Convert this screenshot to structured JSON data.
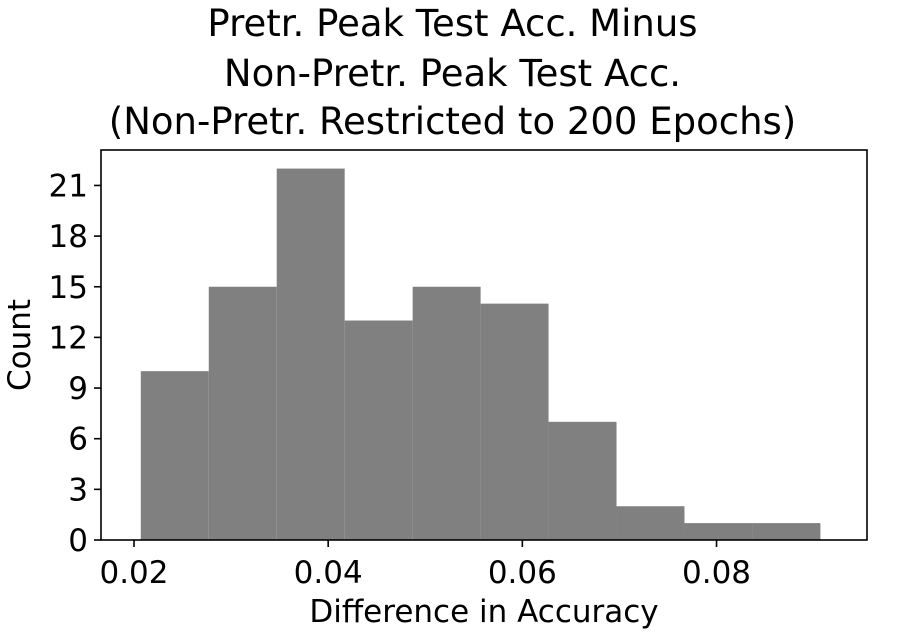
{
  "chart_data": {
    "type": "histogram",
    "title_lines": [
      "Pretr. Peak Test Acc. Minus",
      "Non-Pretr. Peak Test Acc.",
      "(Non-Pretr. Restricted to 200 Epochs)"
    ],
    "xlabel": "Difference in Accuracy",
    "ylabel": "Count",
    "bin_edges": [
      0.0207,
      0.0277,
      0.0347,
      0.0417,
      0.0487,
      0.0557,
      0.0627,
      0.0697,
      0.0767,
      0.0837,
      0.0907
    ],
    "counts": [
      10,
      15,
      22,
      13,
      15,
      14,
      7,
      2,
      1,
      1
    ],
    "xlim": [
      0.0166,
      0.0955
    ],
    "ylim": [
      0,
      23.1
    ],
    "xticks": [
      0.02,
      0.04,
      0.06,
      0.08
    ],
    "xtick_labels": [
      "0.02",
      "0.04",
      "0.06",
      "0.08"
    ],
    "yticks": [
      0,
      3,
      6,
      9,
      12,
      15,
      18,
      21
    ],
    "ytick_labels": [
      "0",
      "3",
      "6",
      "9",
      "12",
      "15",
      "18",
      "21"
    ],
    "bar_color": "#808080",
    "grid": false,
    "legend": "none"
  }
}
